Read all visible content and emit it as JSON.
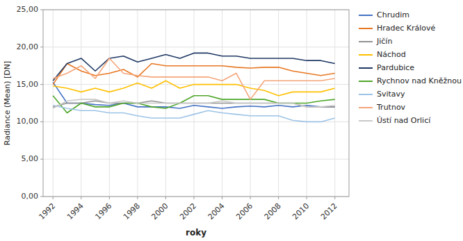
{
  "chart_data": {
    "type": "line",
    "x": [
      1992,
      1993,
      1994,
      1995,
      1996,
      1997,
      1998,
      1999,
      2000,
      2001,
      2002,
      2003,
      2004,
      2005,
      2006,
      2007,
      2008,
      2009,
      2010,
      2011,
      2012
    ],
    "series": [
      {
        "name": "Chrudim",
        "color": "#4472C4",
        "values": [
          15.3,
          12.5,
          12.5,
          12.3,
          12.2,
          12.5,
          12.0,
          12.0,
          12.0,
          11.8,
          12.2,
          12.0,
          11.8,
          12.0,
          12.1,
          12.0,
          12.2,
          12.0,
          12.2,
          12.0,
          12.0
        ]
      },
      {
        "name": "Hradec Králové",
        "color": "#E87722",
        "values": [
          15.0,
          17.8,
          16.8,
          16.2,
          16.5,
          17.0,
          16.0,
          17.8,
          17.5,
          17.5,
          17.5,
          17.5,
          17.5,
          17.3,
          17.2,
          17.3,
          17.3,
          16.8,
          16.5,
          16.2,
          16.5
        ]
      },
      {
        "name": "Jičín",
        "color": "#919191",
        "values": [
          12.0,
          12.5,
          12.5,
          12.8,
          12.5,
          12.5,
          12.5,
          12.8,
          12.5,
          12.5,
          12.5,
          12.5,
          12.5,
          12.5,
          12.5,
          12.5,
          12.5,
          12.5,
          12.0,
          12.0,
          12.0
        ]
      },
      {
        "name": "Náchod",
        "color": "#FFC000",
        "values": [
          14.8,
          14.5,
          14.0,
          14.5,
          14.0,
          14.5,
          15.2,
          14.5,
          15.5,
          14.5,
          15.0,
          15.0,
          15.0,
          15.0,
          14.5,
          14.2,
          13.5,
          14.0,
          14.0,
          14.0,
          14.5
        ]
      },
      {
        "name": "Pardubice",
        "color": "#1F3864",
        "values": [
          15.5,
          17.8,
          18.5,
          16.8,
          18.5,
          18.8,
          18.0,
          18.5,
          19.0,
          18.5,
          19.2,
          19.2,
          18.8,
          18.8,
          18.5,
          18.5,
          18.5,
          18.5,
          18.2,
          18.2,
          17.8
        ]
      },
      {
        "name": "Rychnov nad Kněžnou",
        "color": "#4EA62A",
        "values": [
          13.5,
          11.2,
          12.5,
          12.0,
          12.0,
          12.5,
          12.5,
          12.0,
          11.8,
          12.5,
          13.5,
          13.5,
          13.0,
          13.0,
          13.0,
          13.0,
          12.5,
          12.5,
          12.5,
          12.8,
          13.0
        ]
      },
      {
        "name": "Svitavy",
        "color": "#9DC3E6",
        "values": [
          12.2,
          11.8,
          11.5,
          11.5,
          11.2,
          11.2,
          10.8,
          10.5,
          10.5,
          10.5,
          11.0,
          11.5,
          11.2,
          11.0,
          10.8,
          10.8,
          10.8,
          10.2,
          10.0,
          10.0,
          10.5
        ]
      },
      {
        "name": "Trutnov",
        "color": "#F4A57A",
        "values": [
          15.8,
          16.5,
          17.5,
          15.8,
          18.5,
          16.5,
          16.2,
          16.0,
          16.0,
          16.0,
          16.0,
          16.0,
          15.5,
          16.5,
          13.0,
          15.5,
          15.5,
          15.5,
          15.5,
          15.5,
          15.8
        ]
      },
      {
        "name": "Ústí nad Orlicí",
        "color": "#C9C9C9",
        "values": [
          11.8,
          12.8,
          13.0,
          13.0,
          12.5,
          12.8,
          12.5,
          12.5,
          12.5,
          12.5,
          12.5,
          12.5,
          12.8,
          12.5,
          12.5,
          12.5,
          12.5,
          12.5,
          12.0,
          12.0,
          12.2
        ]
      }
    ],
    "x_label": "roky",
    "y_label": "Radiance (Mean) [DN]",
    "xlim": [
      1991.3,
      2013.0
    ],
    "xticks": [
      1992,
      1994,
      1996,
      1998,
      2000,
      2002,
      2004,
      2006,
      2008,
      2010,
      2012
    ],
    "ylim": [
      0,
      25
    ],
    "yticks": [
      {
        "value": 0.0,
        "label": "0,00"
      },
      {
        "value": 5.0,
        "label": "5,00"
      },
      {
        "value": 10.0,
        "label": "10,00"
      },
      {
        "value": 15.0,
        "label": "15,00"
      },
      {
        "value": 20.0,
        "label": "20,00"
      },
      {
        "value": 25.0,
        "label": "25,00"
      }
    ],
    "grid": true,
    "legend": "right"
  }
}
